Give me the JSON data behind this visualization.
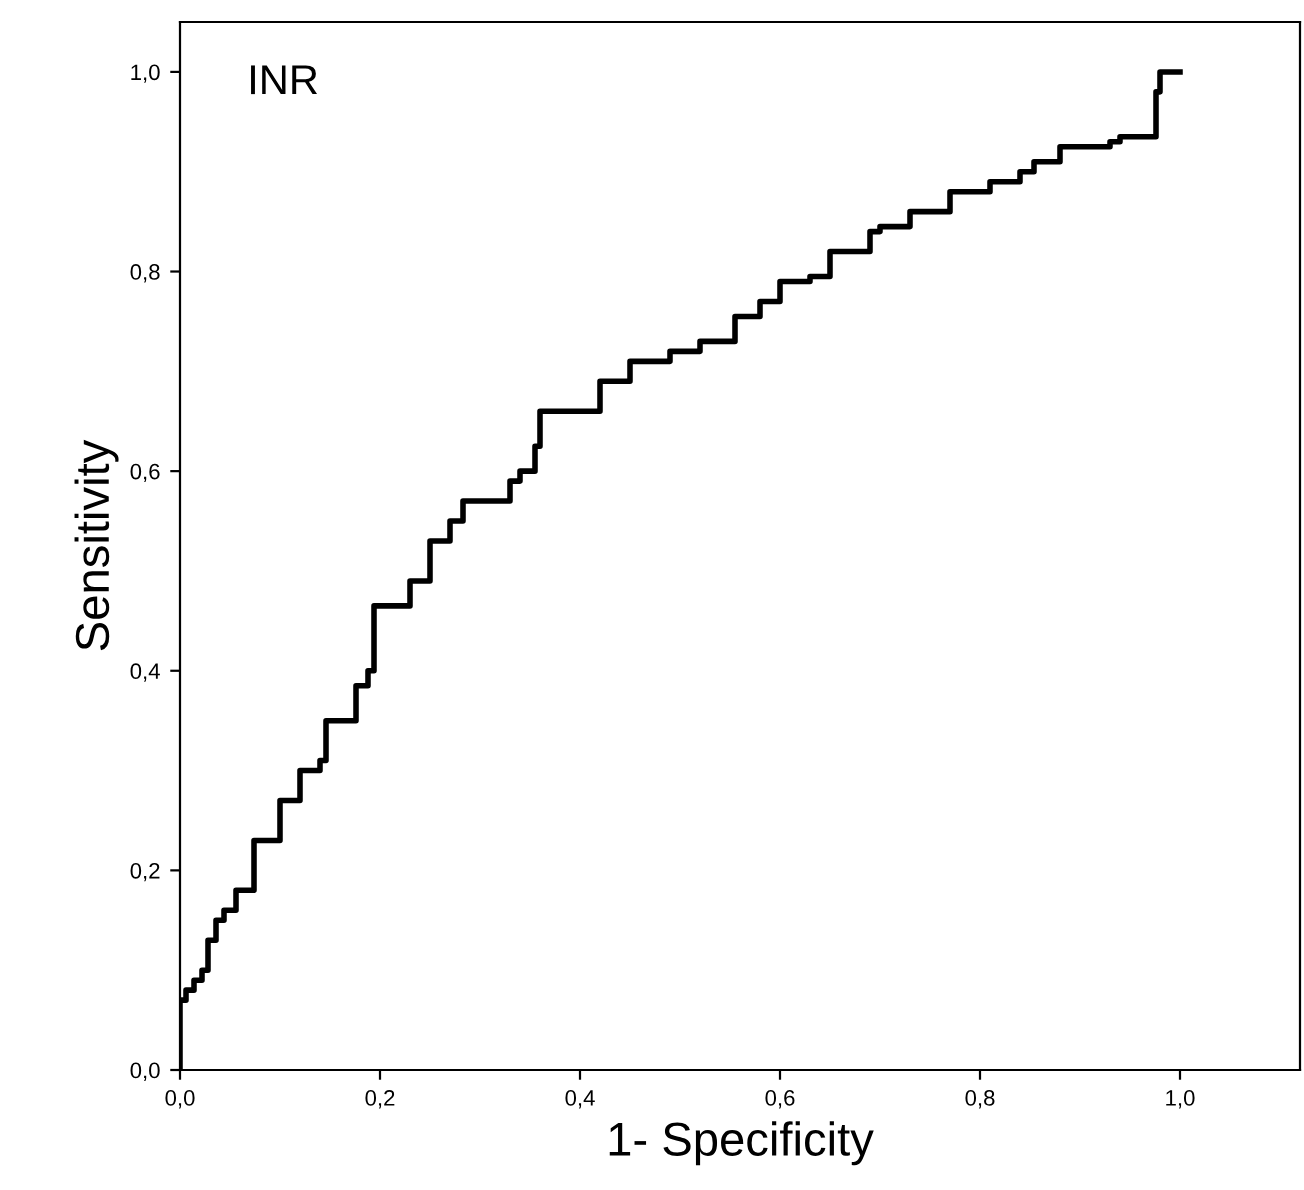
{
  "chart_data": {
    "type": "step",
    "xlabel": "1- Specificity",
    "ylabel": "Sensitivity",
    "annotations": [
      "INR"
    ],
    "series": [
      {
        "color": "#000000",
        "x": [
          0,
          0,
          0.006,
          0.014,
          0.022,
          0.028,
          0.036,
          0.044,
          0.056,
          0.068,
          0.074,
          0.094,
          0.1,
          0.12,
          0.14,
          0.146,
          0.164,
          0.176,
          0.188,
          0.194,
          0.216,
          0.23,
          0.25,
          0.27,
          0.283,
          0.31,
          0.33,
          0.34,
          0.355,
          0.36,
          0.4,
          0.42,
          0.45,
          0.49,
          0.52,
          0.55,
          0.555,
          0.58,
          0.6,
          0.63,
          0.65,
          0.69,
          0.7,
          0.73,
          0.75,
          0.77,
          0.81,
          0.84,
          0.854,
          0.87,
          0.88,
          0.93,
          0.94,
          0.974,
          0.976,
          0.98,
          1.0
        ],
        "values": [
          0,
          0.07,
          0.08,
          0.09,
          0.1,
          0.13,
          0.15,
          0.16,
          0.18,
          0.18,
          0.23,
          0.23,
          0.27,
          0.3,
          0.31,
          0.35,
          0.35,
          0.385,
          0.4,
          0.465,
          0.465,
          0.49,
          0.53,
          0.55,
          0.57,
          0.57,
          0.59,
          0.6,
          0.625,
          0.66,
          0.66,
          0.69,
          0.71,
          0.72,
          0.73,
          0.73,
          0.755,
          0.77,
          0.79,
          0.795,
          0.82,
          0.84,
          0.845,
          0.86,
          0.86,
          0.88,
          0.89,
          0.9,
          0.91,
          0.91,
          0.925,
          0.93,
          0.935,
          0.935,
          0.98,
          1.0,
          1.0
        ]
      }
    ],
    "xlim": [
      0,
      1.12
    ],
    "ylim": [
      0,
      1.05
    ],
    "xticks": [
      {
        "value": 0,
        "label": "0,0"
      },
      {
        "value": 0.2,
        "label": "0,2"
      },
      {
        "value": 0.4,
        "label": "0,4"
      },
      {
        "value": 0.6,
        "label": "0,6"
      },
      {
        "value": 0.8,
        "label": "0,8"
      },
      {
        "value": 1.0,
        "label": "1,0"
      }
    ],
    "yticks": [
      {
        "value": 0,
        "label": "0,0"
      },
      {
        "value": 0.2,
        "label": "0,2"
      },
      {
        "value": 0.4,
        "label": "0,4"
      },
      {
        "value": 0.6,
        "label": "0,6"
      },
      {
        "value": 0.8,
        "label": "0,8"
      },
      {
        "value": 1.0,
        "label": "1,0"
      }
    ],
    "grid": false
  }
}
